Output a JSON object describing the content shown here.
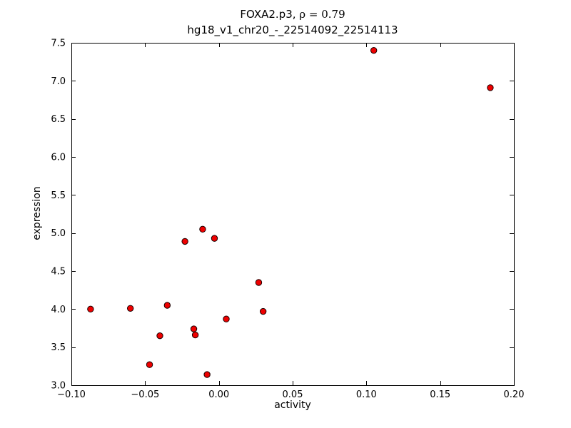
{
  "figure": {
    "title_parts": {
      "prefix": "FOXA2.p3, ",
      "rho": "ρ",
      "rho_eq": " = 0.79"
    }
  },
  "chart_data": {
    "type": "scatter",
    "title": "FOXA2.p3, ρ = 0.79",
    "subtitle": "hg18_v1_chr20_-_22514092_22514113",
    "xlabel": "activity",
    "ylabel": "expression",
    "xlim": [
      -0.1,
      0.2
    ],
    "ylim": [
      3.0,
      7.5
    ],
    "xticks": [
      -0.1,
      -0.05,
      0.0,
      0.05,
      0.1,
      0.15,
      0.2
    ],
    "xtick_labels": [
      "−0.10",
      "−0.05",
      "0.00",
      "0.05",
      "0.10",
      "0.15",
      "0.20"
    ],
    "yticks": [
      3.0,
      3.5,
      4.0,
      4.5,
      5.0,
      5.5,
      6.0,
      6.5,
      7.0,
      7.5
    ],
    "ytick_labels": [
      "3.0",
      "3.5",
      "4.0",
      "4.5",
      "5.0",
      "5.5",
      "6.0",
      "6.5",
      "7.0",
      "7.5"
    ],
    "grid": false,
    "legend": null,
    "marker": {
      "shape": "circle",
      "face_color": "#ee0000",
      "edge_color": "#1a0000",
      "radius": 4.2
    },
    "frame_color": "#000000",
    "background_color": "#ffffff",
    "points": [
      [
        -0.087,
        4.0
      ],
      [
        -0.06,
        4.01
      ],
      [
        -0.047,
        3.27
      ],
      [
        -0.04,
        3.65
      ],
      [
        -0.035,
        4.05
      ],
      [
        -0.023,
        4.89
      ],
      [
        -0.017,
        3.74
      ],
      [
        -0.016,
        3.66
      ],
      [
        -0.011,
        5.05
      ],
      [
        -0.008,
        3.14
      ],
      [
        -0.003,
        4.93
      ],
      [
        0.005,
        3.87
      ],
      [
        0.027,
        4.35
      ],
      [
        0.03,
        3.97
      ],
      [
        0.105,
        7.4
      ],
      [
        0.184,
        6.91
      ]
    ]
  }
}
